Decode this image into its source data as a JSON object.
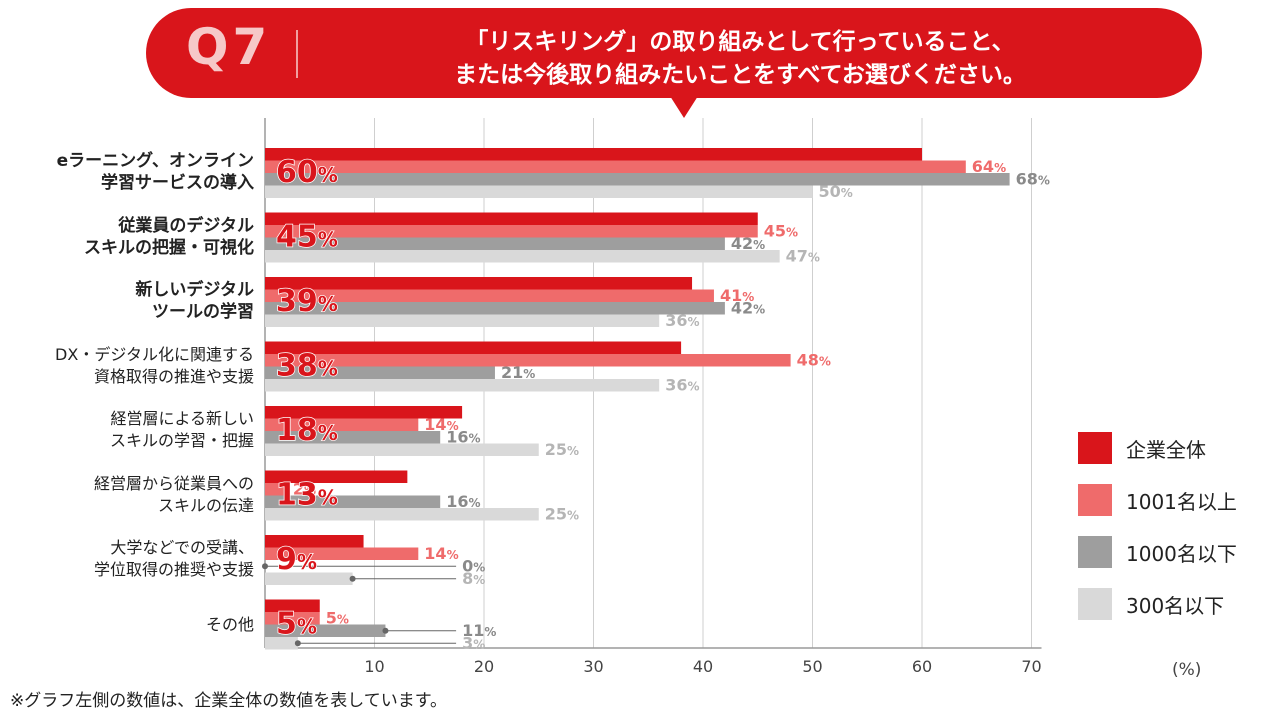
{
  "question": {
    "number": "Q7",
    "line1": "「リスキリング」の取り組みとして行っていること、",
    "line2": "または今後取り組みたいことをすべてお選びください。"
  },
  "colors": {
    "banner": "#d9151b",
    "total": "#d9151b",
    "large": "#ef6b6b",
    "mid": "#9e9e9e",
    "small": "#d9d9d9"
  },
  "chart_data": {
    "type": "bar",
    "orientation": "horizontal",
    "unit_label": "(%)",
    "xlim": [
      0,
      70
    ],
    "xticks": [
      10,
      20,
      30,
      40,
      50,
      60,
      70
    ],
    "series": [
      {
        "name": "企業全体",
        "key": "total",
        "values": [
          60,
          45,
          39,
          38,
          18,
          13,
          9,
          5
        ]
      },
      {
        "name": "1001名以上",
        "key": "large",
        "values": [
          64,
          45,
          41,
          48,
          14,
          2,
          14,
          5
        ]
      },
      {
        "name": "1000名以下",
        "key": "mid",
        "values": [
          68,
          42,
          42,
          21,
          16,
          16,
          0,
          11
        ]
      },
      {
        "name": "300名以下",
        "key": "small",
        "values": [
          50,
          47,
          36,
          36,
          25,
          25,
          8,
          3
        ]
      }
    ],
    "categories": [
      {
        "line1": "eラーニング、オンライン",
        "line2": "学習サービスの導入",
        "bold": true
      },
      {
        "line1": "従業員のデジタル",
        "line2": "スキルの把握・可視化",
        "bold": true
      },
      {
        "line1": "新しいデジタル",
        "line2": "ツールの学習",
        "bold": true
      },
      {
        "line1": "DX・デジタル化に関連する",
        "line2": "資格取得の推進や支援",
        "bold": false
      },
      {
        "line1": "経営層による新しい",
        "line2": "スキルの学習・把握",
        "bold": false
      },
      {
        "line1": "経営層から従業員への",
        "line2": "スキルの伝達",
        "bold": false
      },
      {
        "line1": "大学などでの受講、",
        "line2": "学位取得の推奨や支援",
        "bold": false
      },
      {
        "line1": "その他",
        "line2": "",
        "bold": false
      }
    ]
  },
  "footnote": "※グラフ左側の数値は、企業全体の数値を表しています。"
}
